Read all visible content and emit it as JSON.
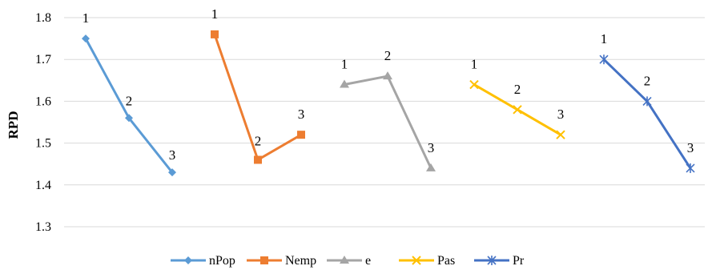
{
  "chart_data": {
    "type": "line",
    "title": "",
    "xlabel": "",
    "ylabel": "RPD",
    "ylim": [
      1.3,
      1.8
    ],
    "yticks": [
      "1.3",
      "1.4",
      "1.5",
      "1.6",
      "1.7",
      "1.8"
    ],
    "grid": "horizontal",
    "legend_position": "bottom",
    "series": [
      {
        "name": "nPop",
        "color": "#5B9BD5",
        "marker": "diamond",
        "levels": [
          "1",
          "2",
          "3"
        ],
        "values": [
          1.75,
          1.56,
          1.43
        ]
      },
      {
        "name": "Nemp",
        "color": "#ED7D31",
        "marker": "square",
        "levels": [
          "1",
          "2",
          "3"
        ],
        "values": [
          1.76,
          1.46,
          1.52
        ]
      },
      {
        "name": "e",
        "color": "#A5A5A5",
        "marker": "triangle",
        "levels": [
          "1",
          "2",
          "3"
        ],
        "values": [
          1.64,
          1.66,
          1.44
        ]
      },
      {
        "name": "Pas",
        "color": "#FFC000",
        "marker": "x",
        "levels": [
          "1",
          "2",
          "3"
        ],
        "values": [
          1.64,
          1.58,
          1.52
        ]
      },
      {
        "name": "Pr",
        "color": "#4472C4",
        "marker": "star",
        "levels": [
          "1",
          "2",
          "3"
        ],
        "values": [
          1.7,
          1.6,
          1.44
        ]
      }
    ]
  }
}
